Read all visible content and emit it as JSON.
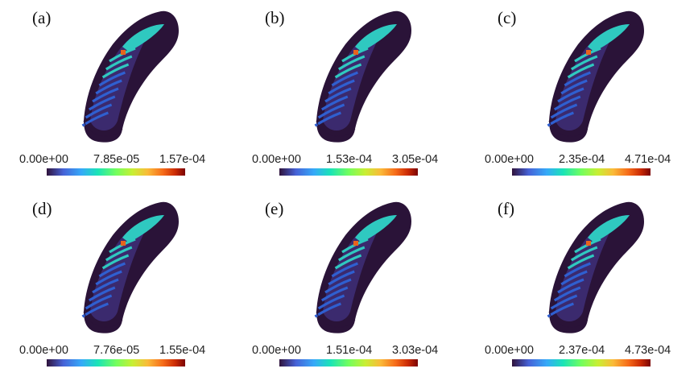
{
  "panels": [
    {
      "label": "(a)",
      "ticks": [
        "0.00e+00",
        "7.85e-05",
        "1.57e-04"
      ]
    },
    {
      "label": "(b)",
      "ticks": [
        "0.00e+00",
        "1.53e-04",
        "3.05e-04"
      ]
    },
    {
      "label": "(c)",
      "ticks": [
        "0.00e+00",
        "2.35e-04",
        "4.71e-04"
      ]
    },
    {
      "label": "(d)",
      "ticks": [
        "0.00e+00",
        "7.76e-05",
        "1.55e-04"
      ]
    },
    {
      "label": "(e)",
      "ticks": [
        "0.00e+00",
        "1.51e-04",
        "3.03e-04"
      ]
    },
    {
      "label": "(f)",
      "ticks": [
        "0.00e+00",
        "2.37e-04",
        "4.73e-04"
      ]
    }
  ],
  "colors": {
    "body": "#2a1338",
    "body_light": "#3b2a6e",
    "stripe_blue": "#2f5fd0",
    "stripe_cyan": "#2fc9c0",
    "hot_green": "#7ff04a",
    "hot_orange": "#e8631c"
  }
}
